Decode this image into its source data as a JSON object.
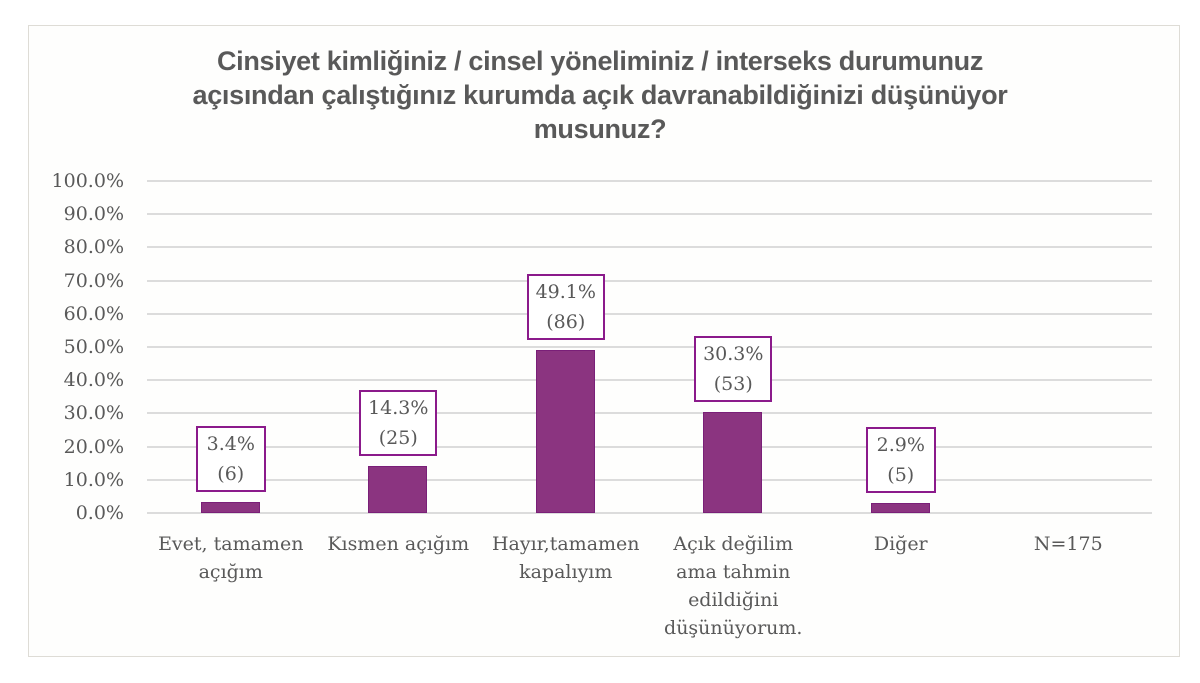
{
  "chart_data": {
    "type": "bar",
    "title": "Cinsiyet kimliğiniz / cinsel yöneliminiz / interseks durumunuz açısından çalıştığınız kurumda açık davranabildiğinizi düşünüyor musunuz?",
    "title_lines": [
      "Cinsiyet kimliğiniz / cinsel yöneliminiz / interseks durumunuz",
      "açısından çalıştığınız kurumda açık davranabildiğinizi düşünüyor",
      "musunuz?"
    ],
    "categories": [
      "Evet, tamamen açığım",
      "Kısmen açığım",
      "Hayır,tamamen kapalıyım",
      "Açık değilim ama tahmin edildiğini düşünüyorum.",
      "Diğer",
      "N=175"
    ],
    "category_lines": [
      [
        "Evet, tamamen",
        "açığım"
      ],
      [
        "Kısmen açığım"
      ],
      [
        "Hayır,tamamen",
        "kapalıyım"
      ],
      [
        "Açık değilim",
        "ama tahmin",
        "edildiğini",
        "düşünüyorum."
      ],
      [
        "Diğer"
      ],
      [
        "N=175"
      ]
    ],
    "values": [
      3.4,
      14.3,
      49.1,
      30.3,
      2.9,
      null
    ],
    "counts": [
      6,
      25,
      86,
      53,
      5,
      null
    ],
    "data_labels": [
      {
        "pct": "3.4%",
        "count": "(6)"
      },
      {
        "pct": "14.3%",
        "count": "(25)"
      },
      {
        "pct": "49.1%",
        "count": "(86)"
      },
      {
        "pct": "30.3%",
        "count": "(53)"
      },
      {
        "pct": "2.9%",
        "count": "(5)"
      }
    ],
    "xlabel": "",
    "ylabel": "",
    "ylim": [
      0,
      100
    ],
    "yticks": [
      "0.0%",
      "10.0%",
      "20.0%",
      "30.0%",
      "40.0%",
      "50.0%",
      "60.0%",
      "70.0%",
      "80.0%",
      "90.0%",
      "100.0%"
    ],
    "grid": true,
    "legend": null,
    "annotations": [
      "N=175"
    ],
    "colors": {
      "bar": "#8b3480",
      "label_border": "#8b1a8b",
      "text": "#595959",
      "grid": "#dcdcdc"
    }
  }
}
